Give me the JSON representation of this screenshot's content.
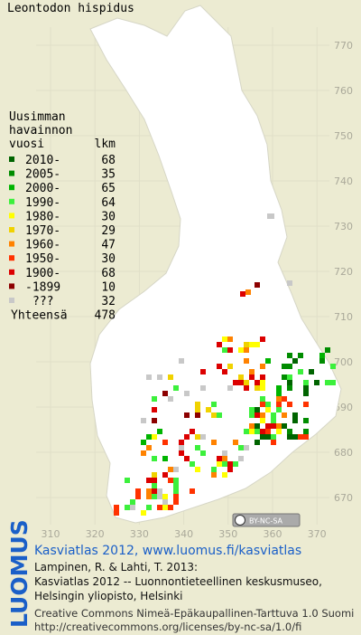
{
  "title": "Leontodon hispidus",
  "legend": {
    "heading": [
      "Uusimman",
      "havainnon"
    ],
    "col_year": "vuosi",
    "col_count": "lkm",
    "rows": [
      {
        "label": "2010-",
        "count": 68,
        "color": "#006400"
      },
      {
        "label": "2005-",
        "count": 35,
        "color": "#008c00"
      },
      {
        "label": "2000-",
        "count": 65,
        "color": "#00b400"
      },
      {
        "label": "1990-",
        "count": 64,
        "color": "#3cf03c"
      },
      {
        "label": "1980-",
        "count": 30,
        "color": "#ffff00"
      },
      {
        "label": "1970-",
        "count": 29,
        "color": "#f0d200"
      },
      {
        "label": "1960-",
        "count": 47,
        "color": "#ff8200"
      },
      {
        "label": "1950-",
        "count": 30,
        "color": "#ff3200"
      },
      {
        "label": "1900-",
        "count": 68,
        "color": "#dc0000"
      },
      {
        "label": "-1899",
        "count": 10,
        "color": "#8c0000"
      },
      {
        "label": "???",
        "count": 32,
        "color": "#c8c8c8"
      }
    ],
    "total_label": "Yhteensä",
    "total": 478
  },
  "grid": {
    "y_labels": [
      770,
      760,
      750,
      740,
      730,
      720,
      710,
      700,
      690,
      680,
      670
    ],
    "x_labels": [
      310,
      320,
      330,
      340,
      350,
      360,
      370
    ]
  },
  "license_badge": "BY-NC-SA",
  "logo": "LUOMUS",
  "credits": {
    "link": "Kasviatlas 2012, www.luomus.fi/kasviatlas",
    "citation": [
      "Lampinen, R. & Lahti, T. 2013:",
      "Kasviatlas 2012 -- Luonnontieteellinen keskusmuseo,",
      "Helsingin yliopisto, Helsinki"
    ],
    "license": [
      "Creative Commons Nimeä-Epäkaupallinen-Tarttuva 1.0 Suomi",
      "http://creativecommons.org/licenses/by-nc-sa/1.0/fi"
    ]
  }
}
